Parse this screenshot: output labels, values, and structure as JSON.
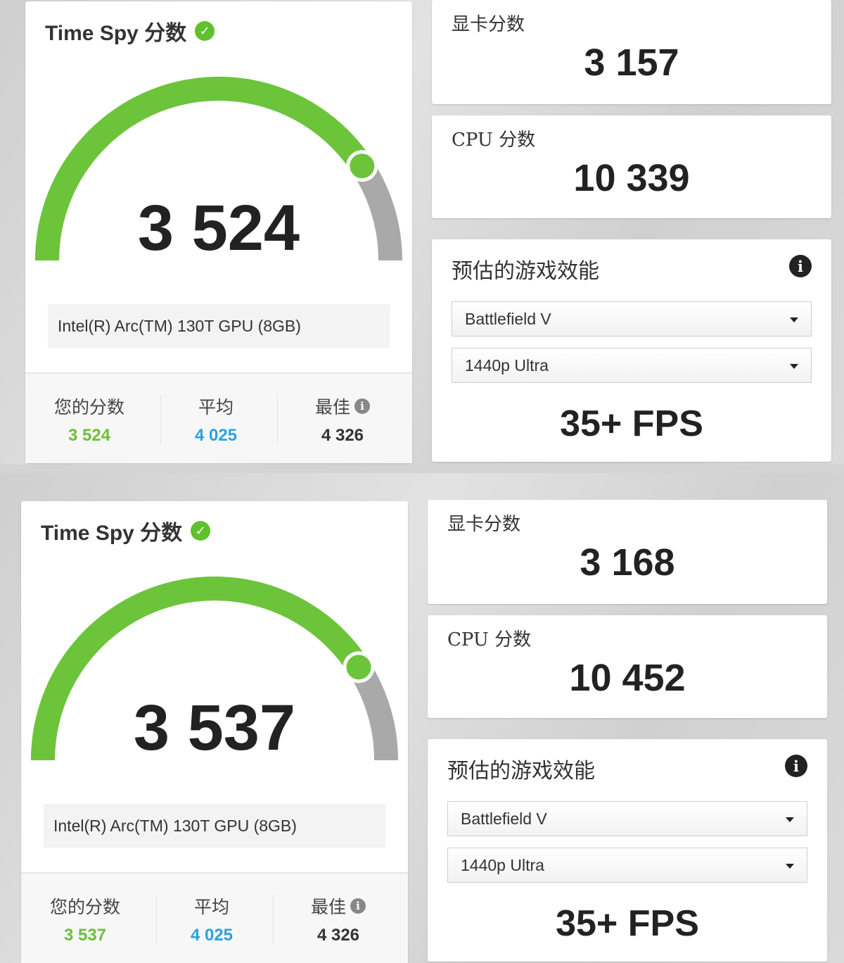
{
  "colors": {
    "gauge_fill": "#6cc43a",
    "gauge_rest": "#a9a9a9",
    "your_score": "#6cbf3a",
    "average": "#2aa3dd",
    "best": "#333333"
  },
  "panels": [
    {
      "title": "Time Spy 分数",
      "score": "3 524",
      "score_value": 3524,
      "gpu_name": "Intel(R) Arc(TM) 130T GPU (8GB)",
      "stats": {
        "yours_label": "您的分数",
        "yours": "3 524",
        "avg_label": "平均",
        "avg": "4 025",
        "best_label": "最佳",
        "best": "4 326",
        "best_value": 4326
      },
      "graphics_label": "显卡分数",
      "graphics_score": "3 157",
      "cpu_label": "CPU 分数",
      "cpu_score": "10 339",
      "game_label": "预估的游戏效能",
      "game": "Battlefield V",
      "preset": "1440p Ultra",
      "fps": "35+ FPS"
    },
    {
      "title": "Time Spy 分数",
      "score": "3 537",
      "score_value": 3537,
      "gpu_name": "Intel(R) Arc(TM) 130T GPU (8GB)",
      "stats": {
        "yours_label": "您的分数",
        "yours": "3 537",
        "avg_label": "平均",
        "avg": "4 025",
        "best_label": "最佳",
        "best": "4 326",
        "best_value": 4326
      },
      "graphics_label": "显卡分数",
      "graphics_score": "3 168",
      "cpu_label": "CPU 分数",
      "cpu_score": "10 452",
      "game_label": "预估的游戏效能",
      "game": "Battlefield V",
      "preset": "1440p Ultra",
      "fps": "35+ FPS"
    }
  ]
}
